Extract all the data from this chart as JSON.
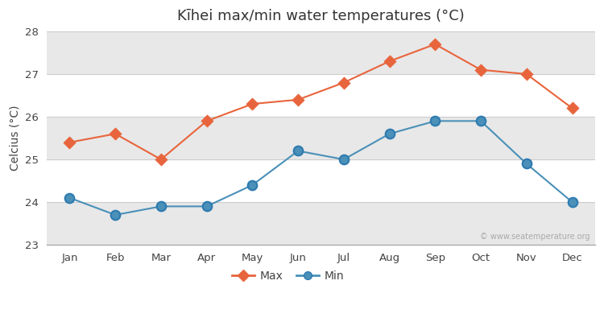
{
  "months": [
    "Jan",
    "Feb",
    "Mar",
    "Apr",
    "May",
    "Jun",
    "Jul",
    "Aug",
    "Sep",
    "Oct",
    "Nov",
    "Dec"
  ],
  "max_temps": [
    25.4,
    25.6,
    25.0,
    25.9,
    26.3,
    26.4,
    26.8,
    27.3,
    27.7,
    27.1,
    27.0,
    26.2
  ],
  "min_temps": [
    24.1,
    23.7,
    23.9,
    23.9,
    24.4,
    25.2,
    25.0,
    25.6,
    25.9,
    25.9,
    24.9,
    24.0
  ],
  "max_color": "#E8643C",
  "min_color": "#4A90B8",
  "title": "Kīhei max/min water temperatures (°C)",
  "ylabel": "Celcius (°C)",
  "ylim": [
    23,
    28
  ],
  "yticks": [
    23,
    24,
    25,
    26,
    27,
    28
  ],
  "bg_color": "#ffffff",
  "plot_bg_color": "#ffffff",
  "band_light": "#ebebeb",
  "watermark": "© www.seatemperature.org",
  "title_fontsize": 13,
  "label_fontsize": 10,
  "tick_fontsize": 9.5,
  "min_marker_edge": "#2d7ab0"
}
